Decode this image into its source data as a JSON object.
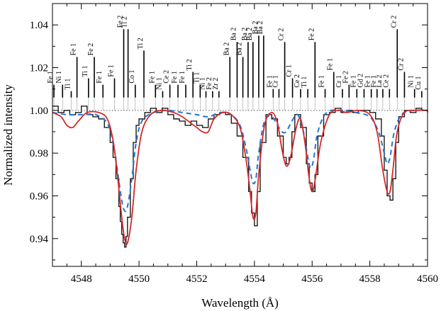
{
  "chart_data": {
    "type": "line",
    "xlabel": "Wavelength (Å)",
    "ylabel": "Normalized intensity",
    "xlim": [
      4547,
      4560
    ],
    "ylim": [
      0.927,
      1.05
    ],
    "xticks": [
      4548,
      4550,
      4552,
      4554,
      4556,
      4558,
      4560
    ],
    "xtick_labels": [
      "4548",
      "4550",
      "4552",
      "4554",
      "4556",
      "4558",
      "4560"
    ],
    "yticks": [
      0.94,
      0.96,
      0.98,
      1.0,
      1.02,
      1.04
    ],
    "ytick_labels": [
      "0.94",
      "0.96",
      "0.98",
      "1.00",
      "1.02",
      "1.04"
    ],
    "continuum": 1.0,
    "grid": false,
    "legend": "none",
    "colors": {
      "observed": "#1a1a1a",
      "model_red": "#d62728",
      "model_blue": "#1f77d4",
      "marker": "#000000",
      "leader": "#aaaaaa",
      "continuum": "#555555"
    },
    "series": [
      {
        "style": "observed-step",
        "x": [
          4547.0,
          4547.2,
          4547.4,
          4547.6,
          4547.8,
          4548.0,
          4548.2,
          4548.4,
          4548.6,
          4548.8,
          4549.0,
          4549.1,
          4549.2,
          4549.3,
          4549.35,
          4549.4,
          4549.45,
          4549.5,
          4549.55,
          4549.6,
          4549.7,
          4549.8,
          4549.9,
          4550.0,
          4550.2,
          4550.4,
          4550.6,
          4550.8,
          4551.0,
          4551.2,
          4551.4,
          4551.6,
          4551.8,
          4552.0,
          4552.2,
          4552.4,
          4552.6,
          4552.8,
          4553.0,
          4553.2,
          4553.4,
          4553.6,
          4553.8,
          4553.9,
          4554.0,
          4554.1,
          4554.2,
          4554.4,
          4554.6,
          4554.8,
          4555.0,
          4555.1,
          4555.2,
          4555.3,
          4555.4,
          4555.6,
          4555.8,
          4555.9,
          4556.0,
          4556.1,
          4556.2,
          4556.4,
          4556.6,
          4556.8,
          4557.0,
          4557.2,
          4557.4,
          4557.6,
          4557.8,
          4558.0,
          4558.2,
          4558.4,
          4558.5,
          4558.6,
          4558.7,
          4558.8,
          4558.9,
          4559.0,
          4559.2,
          4559.4,
          4559.6,
          4559.8,
          4560.0
        ],
        "y": [
          1.002,
          0.999,
          1.0,
          0.998,
          0.999,
          1.002,
          0.998,
          0.997,
          0.996,
          0.992,
          0.985,
          0.978,
          0.968,
          0.955,
          0.948,
          0.942,
          0.938,
          0.936,
          0.941,
          0.95,
          0.968,
          0.985,
          0.993,
          0.996,
          0.999,
          1.001,
          0.999,
          1.001,
          0.998,
          0.996,
          0.995,
          0.993,
          0.995,
          0.993,
          0.992,
          0.996,
          0.998,
          0.999,
          0.998,
          0.994,
          0.988,
          0.978,
          0.962,
          0.952,
          0.946,
          0.962,
          0.985,
          0.998,
          0.996,
          0.988,
          0.978,
          0.975,
          0.978,
          0.99,
          0.998,
          0.992,
          0.975,
          0.966,
          0.962,
          0.97,
          0.988,
          0.998,
          0.999,
          1.001,
          0.999,
          1.0,
          0.999,
          1.0,
          1.0,
          0.999,
          0.996,
          0.988,
          0.972,
          0.96,
          0.958,
          0.968,
          0.985,
          0.997,
          1.0,
          0.999,
          1.001,
          1.0,
          0.999
        ]
      },
      {
        "style": "model-red",
        "x": [
          4547.0,
          4547.3,
          4547.5,
          4547.7,
          4547.9,
          4548.2,
          4548.6,
          4548.9,
          4549.1,
          4549.25,
          4549.4,
          4549.5,
          4549.6,
          4549.75,
          4549.9,
          4550.1,
          4550.4,
          4550.8,
          4551.2,
          4551.5,
          4551.8,
          4552.0,
          4552.2,
          4552.4,
          4552.6,
          4552.9,
          4553.2,
          4553.5,
          4553.7,
          4553.85,
          4553.95,
          4554.05,
          4554.15,
          4554.35,
          4554.6,
          4554.8,
          4554.95,
          4555.1,
          4555.25,
          4555.45,
          4555.6,
          4555.75,
          4555.9,
          4556.0,
          4556.1,
          4556.3,
          4556.6,
          4556.9,
          4557.2,
          4557.6,
          4558.0,
          4558.25,
          4558.45,
          4558.6,
          4558.7,
          4558.8,
          4558.95,
          4559.2,
          4559.6,
          4560.0
        ],
        "y": [
          0.999,
          0.997,
          0.993,
          0.992,
          0.995,
          0.999,
          0.999,
          0.996,
          0.986,
          0.97,
          0.95,
          0.94,
          0.938,
          0.95,
          0.972,
          0.99,
          0.998,
          1.0,
          0.999,
          0.997,
          0.994,
          0.992,
          0.99,
          0.99,
          0.996,
          0.999,
          0.998,
          0.992,
          0.978,
          0.962,
          0.95,
          0.952,
          0.97,
          0.993,
          0.999,
          0.994,
          0.982,
          0.974,
          0.978,
          0.992,
          0.996,
          0.985,
          0.968,
          0.962,
          0.967,
          0.985,
          0.998,
          1.0,
          0.999,
          1.0,
          0.998,
          0.99,
          0.972,
          0.962,
          0.962,
          0.972,
          0.99,
          0.999,
          1.0,
          1.0
        ]
      },
      {
        "style": "model-blue-dashed",
        "x": [
          4547.0,
          4547.5,
          4548.0,
          4548.5,
          4548.9,
          4549.1,
          4549.25,
          4549.4,
          4549.5,
          4549.6,
          4549.75,
          4549.9,
          4550.1,
          4550.5,
          4551.0,
          4551.5,
          4552.0,
          4552.4,
          4552.8,
          4553.2,
          4553.5,
          4553.7,
          4553.85,
          4553.95,
          4554.05,
          4554.15,
          4554.35,
          4554.6,
          4554.8,
          4554.95,
          4555.1,
          4555.3,
          4555.5,
          4555.7,
          4555.85,
          4555.95,
          4556.05,
          4556.2,
          4556.5,
          4557.0,
          4557.5,
          4558.0,
          4558.3,
          4558.5,
          4558.6,
          4558.7,
          4558.85,
          4559.1,
          4559.5,
          4560.0
        ],
        "y": [
          0.999,
          0.998,
          0.998,
          0.998,
          0.994,
          0.985,
          0.972,
          0.958,
          0.953,
          0.955,
          0.968,
          0.985,
          0.995,
          0.999,
          1.0,
          0.999,
          0.998,
          0.997,
          0.999,
          0.998,
          0.993,
          0.983,
          0.972,
          0.966,
          0.968,
          0.98,
          0.995,
          0.997,
          0.993,
          0.99,
          0.99,
          0.995,
          0.998,
          0.99,
          0.978,
          0.973,
          0.977,
          0.99,
          0.999,
          1.0,
          0.999,
          0.997,
          0.99,
          0.98,
          0.975,
          0.978,
          0.99,
          0.998,
          1.0,
          1.0
        ]
      }
    ],
    "line_markers": [
      {
        "label": "Fe 1",
        "x": 4547.05,
        "top": 1.012
      },
      {
        "label": "Ni 1",
        "x": 4547.35,
        "top": 1.012
      },
      {
        "label": "Ti 1",
        "x": 4547.65,
        "top": 1.009
      },
      {
        "label": "Fe 1",
        "x": 4547.85,
        "top": 1.025
      },
      {
        "label": "Ti 1",
        "x": 4548.25,
        "top": 1.015
      },
      {
        "label": "Fe 2",
        "x": 4548.45,
        "top": 1.025
      },
      {
        "label": "Fe 1",
        "x": 4548.75,
        "top": 1.012
      },
      {
        "label": "Fe 1",
        "x": 4549.15,
        "top": 1.015
      },
      {
        "label": "Fe 2",
        "x": 4549.47,
        "top": 1.038
      },
      {
        "label": "Ti 2",
        "x": 4549.62,
        "top": 1.038
      },
      {
        "label": "Co 1",
        "x": 4549.87,
        "top": 1.012
      },
      {
        "label": "Ti 2",
        "x": 4550.17,
        "top": 1.028
      },
      {
        "label": "Fe 1",
        "x": 4550.57,
        "top": 1.012
      },
      {
        "label": "Ni 1",
        "x": 4550.82,
        "top": 1.009
      },
      {
        "label": "Ce 2",
        "x": 4551.07,
        "top": 1.012
      },
      {
        "label": "Fe 1",
        "x": 4551.35,
        "top": 1.012
      },
      {
        "label": "Fe 1",
        "x": 4551.62,
        "top": 1.012
      },
      {
        "label": "Ti 2",
        "x": 4551.87,
        "top": 1.018
      },
      {
        "label": "Ti 1",
        "x": 4552.12,
        "top": 1.012
      },
      {
        "label": "Ni 1",
        "x": 4552.32,
        "top": 1.009
      },
      {
        "label": "Fe 2",
        "x": 4552.55,
        "top": 1.009
      },
      {
        "label": "Zr 2",
        "x": 4552.77,
        "top": 1.009
      },
      {
        "label": "Ba 2",
        "x": 4553.15,
        "top": 1.025
      },
      {
        "label": "Ba 2",
        "x": 4553.4,
        "top": 1.032
      },
      {
        "label": "Ba 2",
        "x": 4553.6,
        "top": 1.025
      },
      {
        "label": "Ba 2",
        "x": 4553.78,
        "top": 1.032
      },
      {
        "label": "Ba 2",
        "x": 4553.95,
        "top": 1.032
      },
      {
        "label": "Ba 2",
        "x": 4554.15,
        "top": 1.035
      },
      {
        "label": "Ba 2",
        "x": 4554.32,
        "top": 1.035
      },
      {
        "label": "Fe 1",
        "x": 4554.65,
        "top": 1.01
      },
      {
        "label": "Cr 1",
        "x": 4554.85,
        "top": 1.01
      },
      {
        "label": "Cr 2",
        "x": 4555.05,
        "top": 1.032
      },
      {
        "label": "Cr 1",
        "x": 4555.32,
        "top": 1.015
      },
      {
        "label": "Ce 2",
        "x": 4555.6,
        "top": 1.01
      },
      {
        "label": "Ti 1",
        "x": 4555.85,
        "top": 1.01
      },
      {
        "label": "Fe 2",
        "x": 4556.1,
        "top": 1.032
      },
      {
        "label": "Fe 1",
        "x": 4556.45,
        "top": 1.01
      },
      {
        "label": "Fe 1",
        "x": 4556.75,
        "top": 1.018
      },
      {
        "label": "Cr 1",
        "x": 4557.05,
        "top": 1.01
      },
      {
        "label": "Fe 2",
        "x": 4557.28,
        "top": 1.012
      },
      {
        "label": "Fe 1",
        "x": 4557.55,
        "top": 1.01
      },
      {
        "label": "Gd 2",
        "x": 4557.8,
        "top": 1.01
      },
      {
        "label": "Fe 1",
        "x": 4558.05,
        "top": 1.01
      },
      {
        "label": "Fe 1",
        "x": 4558.25,
        "top": 1.01
      },
      {
        "label": "La 2",
        "x": 4558.45,
        "top": 1.01
      },
      {
        "label": "Ce 2",
        "x": 4558.68,
        "top": 1.01
      },
      {
        "label": "Cr 2",
        "x": 4558.95,
        "top": 1.038
      },
      {
        "label": "Cr 2",
        "x": 4559.2,
        "top": 1.018
      },
      {
        "label": "Ni 1",
        "x": 4559.55,
        "top": 1.01
      },
      {
        "label": "Cu 1",
        "x": 4559.8,
        "top": 1.009
      }
    ]
  }
}
